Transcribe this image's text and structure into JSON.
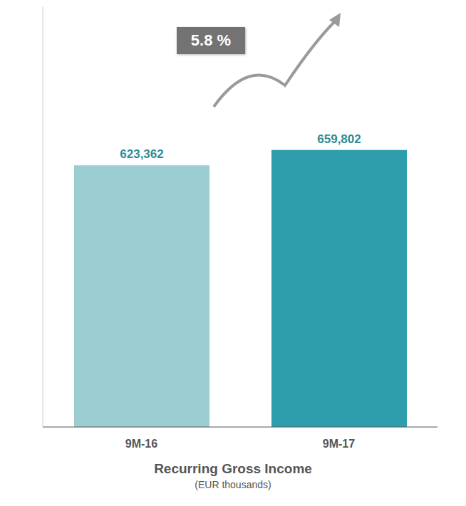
{
  "chart_data": {
    "type": "bar",
    "title": "Recurring Gross Income",
    "subtitle": "(EUR thousands)",
    "categories": [
      "9M-16",
      "9M-17"
    ],
    "values": [
      623362,
      659802
    ],
    "value_labels": [
      "623,362",
      "659,802"
    ],
    "colors": [
      "#9ccdd3",
      "#2e9eac"
    ],
    "ylim": [
      0,
      1000000
    ],
    "tick_labels": "x",
    "data_labels": true,
    "annotation": "5.8 %"
  }
}
